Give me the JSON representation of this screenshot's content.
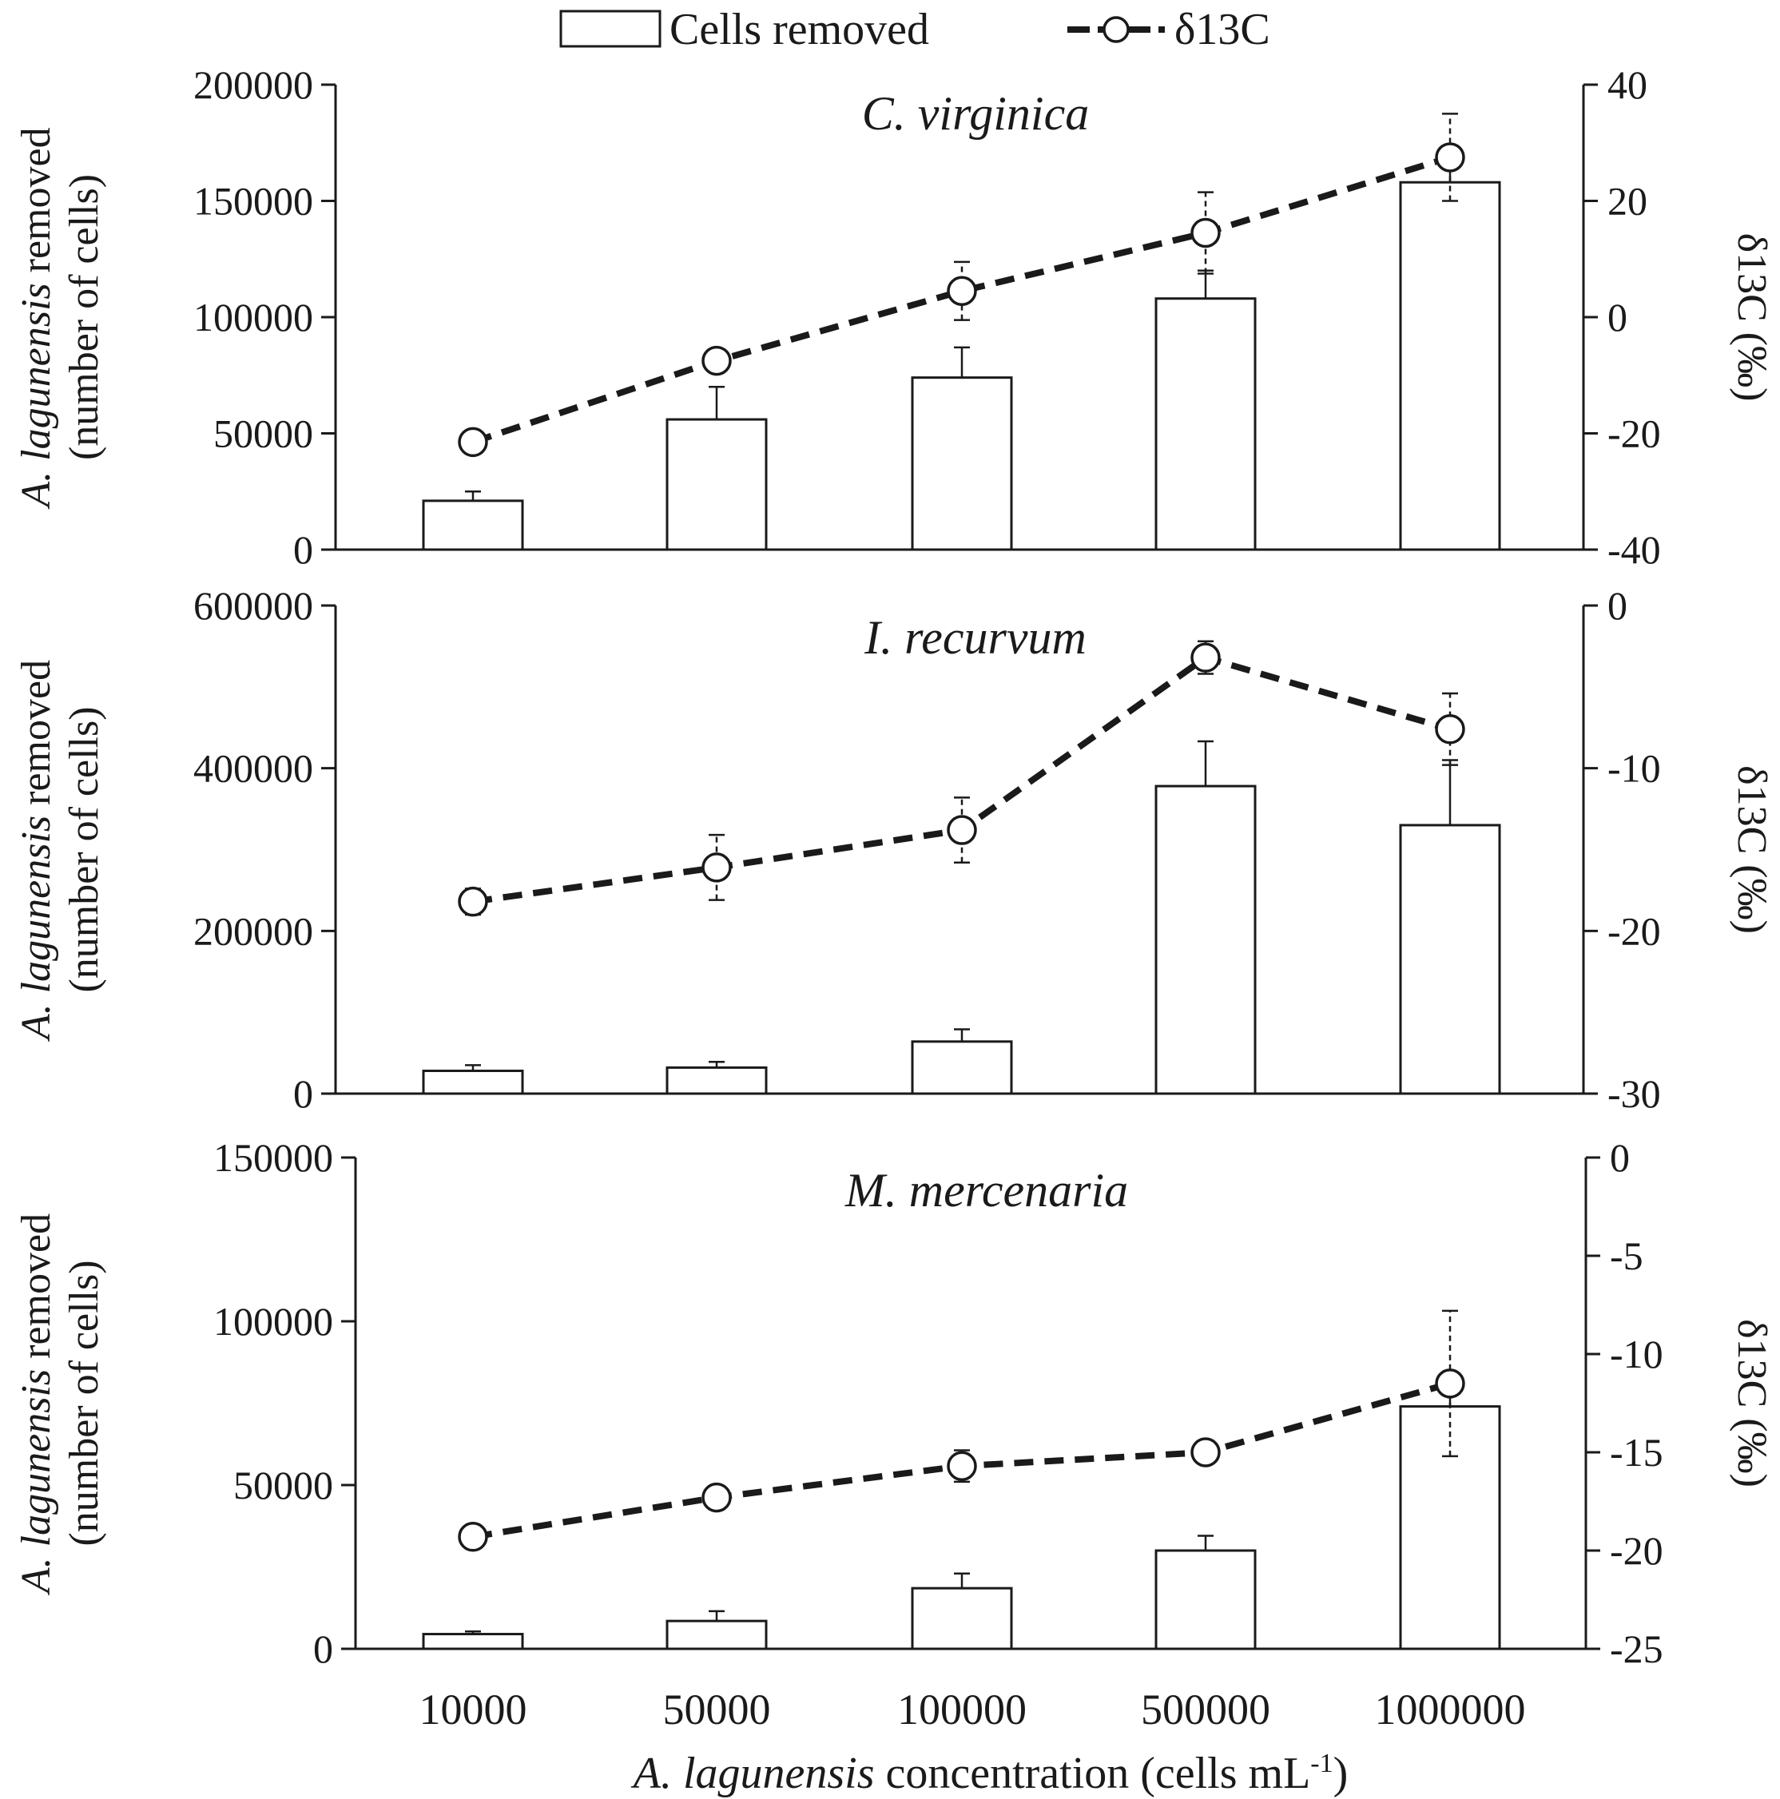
{
  "legend": {
    "bar_label": "Cells removed",
    "line_label": "δ13C"
  },
  "x_axis": {
    "label_italic": "A. lagunensis",
    "label_rest": " concentration (cells mL",
    "label_sup": "-1",
    "label_close": ")"
  },
  "left_axis_label": {
    "italic": "A. lagunensis",
    "rest": " removed",
    "line2": "(number of cells)"
  },
  "right_axis_label": "δ13C (‰)",
  "chart_data": [
    {
      "type": "bar+line",
      "title": "C. virginica",
      "categories": [
        "10000",
        "50000",
        "100000",
        "500000",
        "1000000"
      ],
      "xlabel": "A. lagunensis concentration (cells mL-1)",
      "ylabel": "A. lagunensis removed (number of cells)",
      "ylabel_right": "δ13C (‰)",
      "ylim": [
        0,
        200000
      ],
      "yticks": [
        0,
        50000,
        100000,
        150000,
        200000
      ],
      "ylim_right": [
        -40,
        40
      ],
      "yticks_right": [
        -40,
        -20,
        0,
        20,
        40
      ],
      "series": [
        {
          "name": "Cells removed",
          "axis": "left",
          "values": [
            21000,
            56000,
            74000,
            108000,
            158000
          ],
          "errors": [
            4000,
            14000,
            13000,
            12000,
            12000
          ]
        },
        {
          "name": "δ13C",
          "axis": "right",
          "values": [
            -21.5,
            -7.5,
            4.5,
            14.5,
            27.5
          ],
          "errors": [
            1.0,
            1.5,
            5.0,
            7.0,
            7.5
          ]
        }
      ]
    },
    {
      "type": "bar+line",
      "title": "I. recurvum",
      "categories": [
        "10000",
        "50000",
        "100000",
        "500000",
        "1000000"
      ],
      "xlabel": "A. lagunensis concentration (cells mL-1)",
      "ylabel": "A. lagunensis removed (number of cells)",
      "ylabel_right": "δ13C (‰)",
      "ylim": [
        0,
        600000
      ],
      "yticks": [
        0,
        200000,
        400000,
        600000
      ],
      "ylim_right": [
        -30,
        0
      ],
      "yticks_right": [
        -30,
        -20,
        -10,
        0
      ],
      "series": [
        {
          "name": "Cells removed",
          "axis": "left",
          "values": [
            28000,
            32000,
            64000,
            378000,
            330000
          ],
          "errors": [
            7000,
            7000,
            15000,
            55000,
            80000
          ]
        },
        {
          "name": "δ13C",
          "axis": "right",
          "values": [
            -18.2,
            -16.1,
            -13.8,
            -3.2,
            -7.6
          ],
          "errors": [
            0.8,
            2.0,
            2.0,
            1.0,
            2.2
          ]
        }
      ]
    },
    {
      "type": "bar+line",
      "title": "M. mercenaria",
      "categories": [
        "10000",
        "50000",
        "100000",
        "500000",
        "1000000"
      ],
      "xlabel": "A. lagunensis concentration (cells mL-1)",
      "ylabel": "A. lagunensis removed (number of cells)",
      "ylabel_right": "δ13C (‰)",
      "ylim": [
        0,
        150000
      ],
      "yticks": [
        0,
        50000,
        100000,
        150000
      ],
      "ylim_right": [
        -25,
        0
      ],
      "yticks_right": [
        -25,
        -20,
        -15,
        -10,
        -5,
        0
      ],
      "series": [
        {
          "name": "Cells removed",
          "axis": "left",
          "values": [
            4500,
            8500,
            18500,
            30000,
            74000
          ],
          "errors": [
            800,
            3000,
            4500,
            4500,
            6000
          ]
        },
        {
          "name": "δ13C",
          "axis": "right",
          "values": [
            -19.3,
            -17.3,
            -15.7,
            -15.0,
            -11.5
          ],
          "errors": [
            0.4,
            0.6,
            0.8,
            0.5,
            3.7
          ]
        }
      ]
    }
  ]
}
